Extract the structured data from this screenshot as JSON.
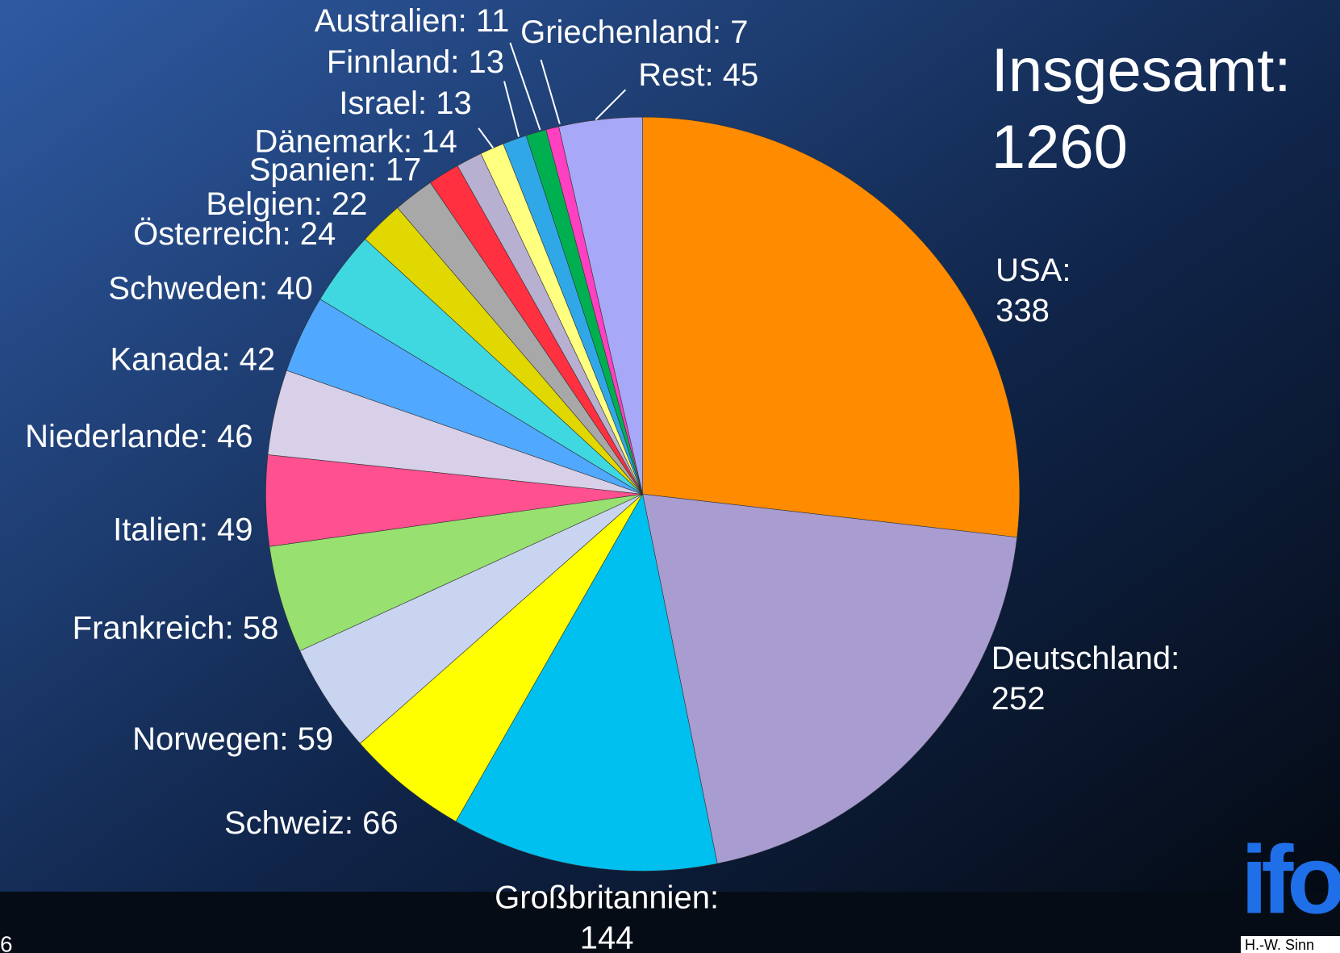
{
  "chart_data": {
    "type": "pie",
    "title": "Insgesamt: 1260",
    "categories": [
      "USA",
      "Deutschland",
      "Großbritannien",
      "Schweiz",
      "Norwegen",
      "Frankreich",
      "Italien",
      "Niederlande",
      "Kanada",
      "Schweden",
      "Österreich",
      "Belgien",
      "Spanien",
      "Dänemark",
      "Israel",
      "Finnland",
      "Australien",
      "Griechenland",
      "Rest"
    ],
    "values": [
      338,
      252,
      144,
      66,
      59,
      58,
      49,
      46,
      42,
      40,
      24,
      22,
      17,
      14,
      13,
      13,
      11,
      7,
      45
    ],
    "value_labels": [
      "USA: 338",
      "Deutschland: 252",
      "Großbritannien: 144",
      "Schweiz: 66",
      "Norwegen: 59",
      "Frankreich: 58",
      "Italien: 49",
      "Niederlande: 46",
      "Kanada: 42",
      "Schweden: 40",
      "Österreich: 24",
      "Belgien: 22",
      "Spanien: 17",
      "Dänemark: 14",
      "Israel: 13",
      "Finnland: 13",
      "Australien: 11",
      "Griechenland: 7",
      "Rest: 45"
    ],
    "colors": [
      "#ff8c00",
      "#a89cd0",
      "#00c0f0",
      "#ffff00",
      "#c8d4f0",
      "#98e070",
      "#ff5090",
      "#d8d0e8",
      "#50a8ff",
      "#40d8e0",
      "#e0d800",
      "#a8a8a8",
      "#ff3040",
      "#b8b0d0",
      "#ffff80",
      "#30a8e8",
      "#00b050",
      "#ff40c0",
      "#a8a8f8"
    ]
  },
  "footer": {
    "page_number": "6",
    "logo": "ifo",
    "author": "H.-W. Sinn"
  }
}
